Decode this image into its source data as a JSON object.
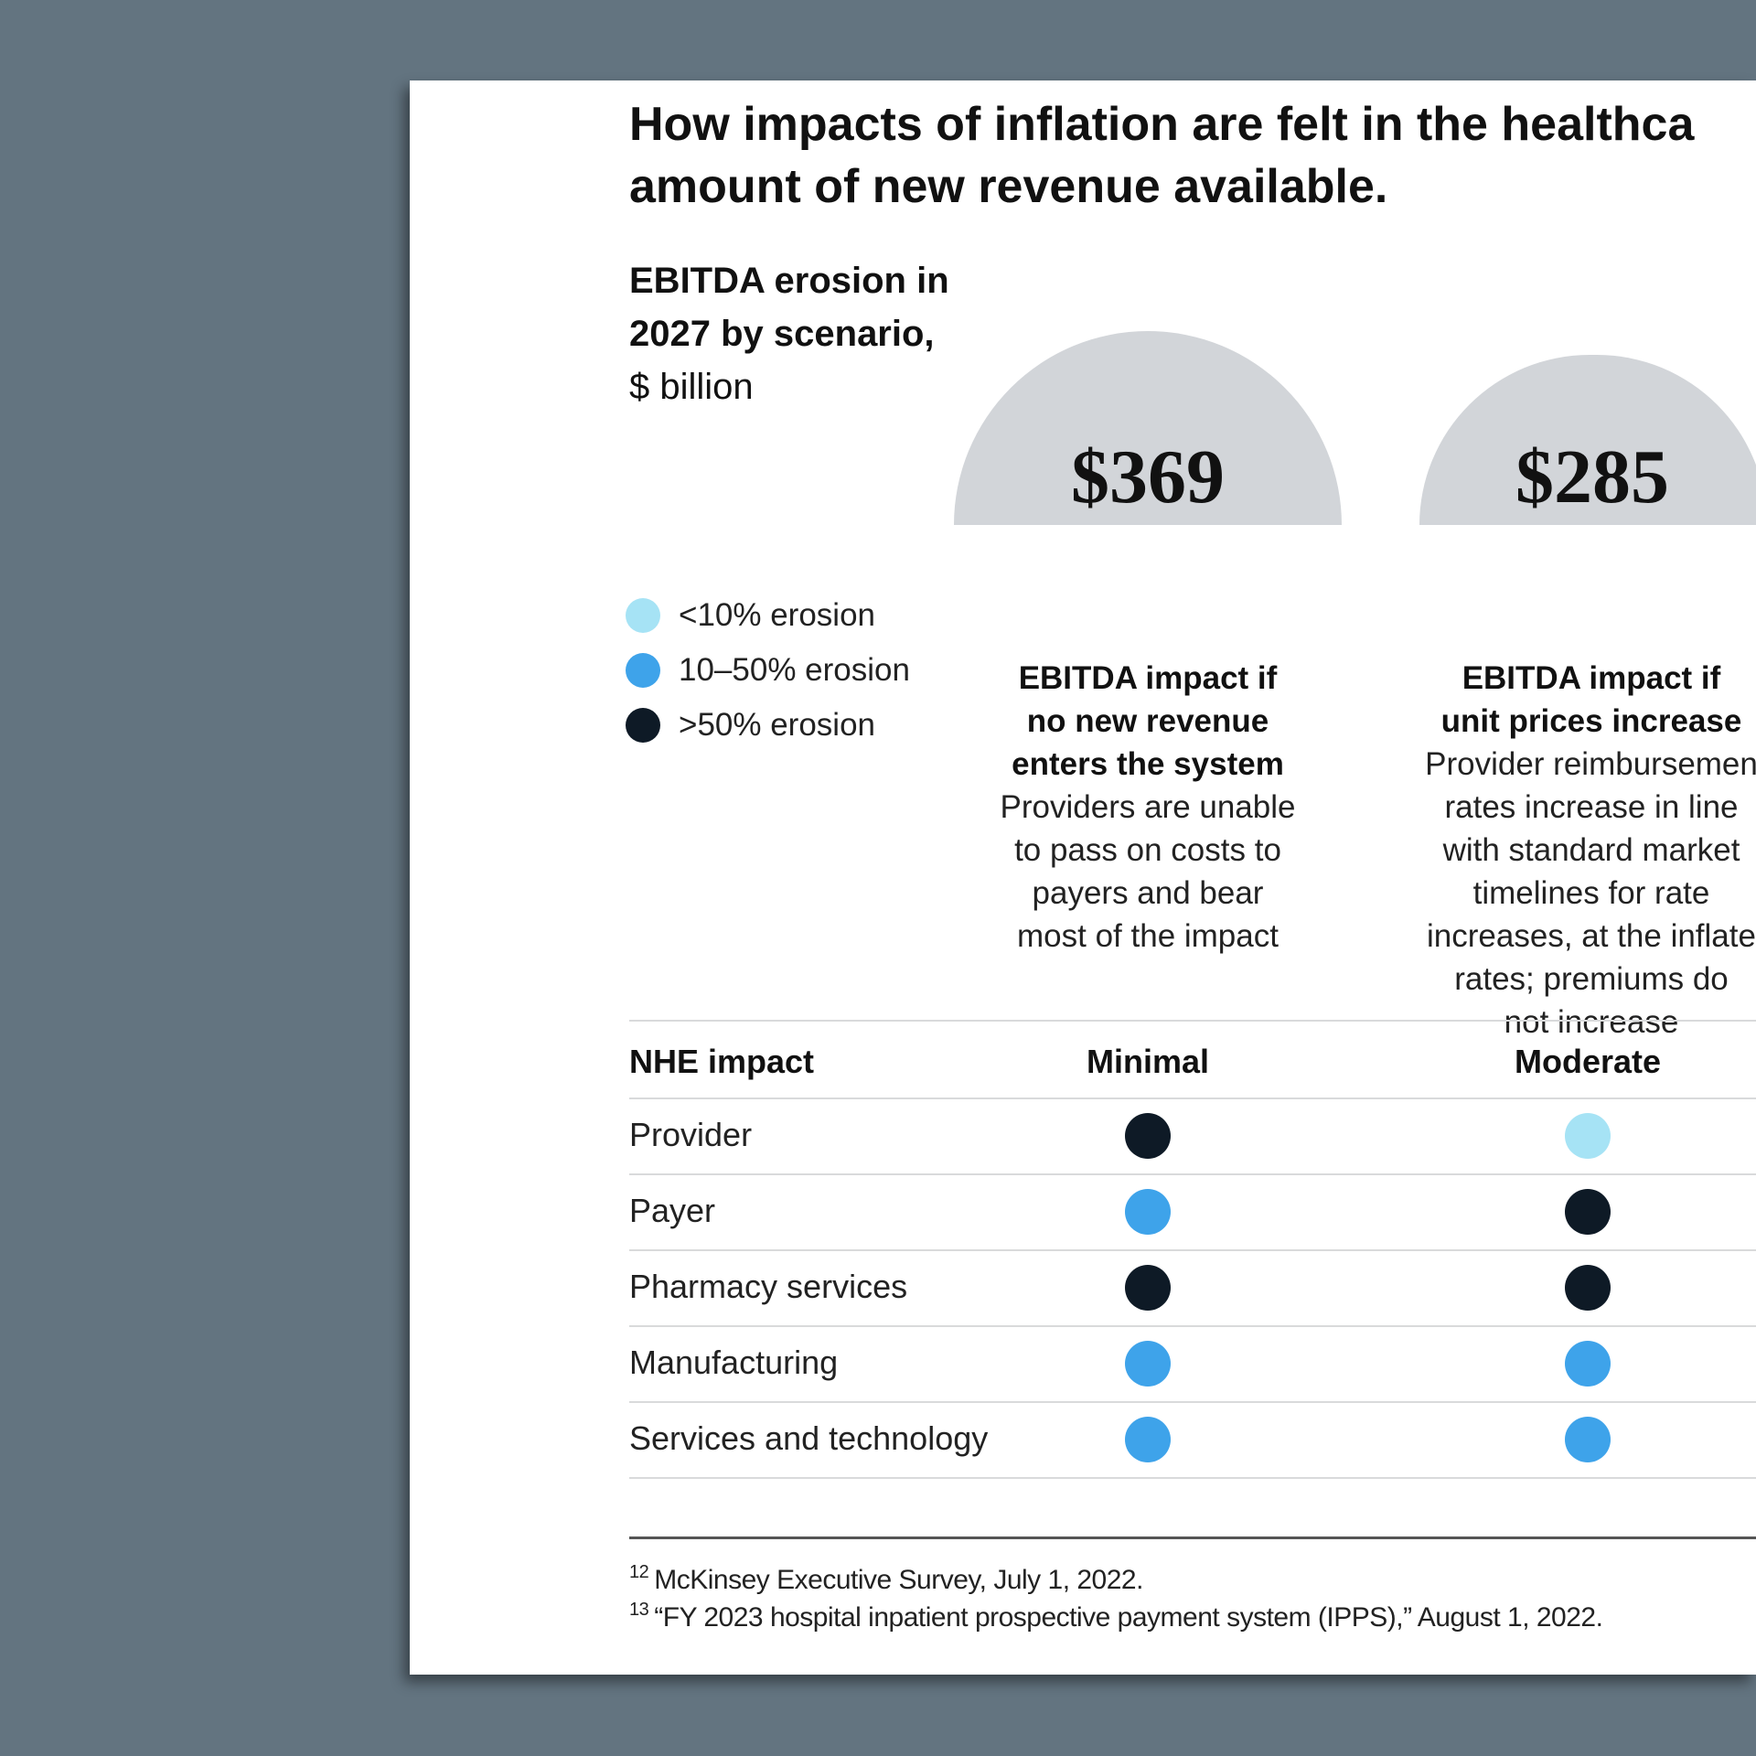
{
  "headline": {
    "line1": "How impacts of inflation are felt in the healthca",
    "line2": "amount of new revenue available."
  },
  "chart_title": {
    "bold_line1": "EBITDA erosion in",
    "bold_line2": "2027 by scenario,",
    "unit": "$ billion"
  },
  "legend": [
    {
      "label": "<10% erosion",
      "color": "#a6e3f5"
    },
    {
      "label": "10–50% erosion",
      "color": "#3ea3ea"
    },
    {
      "label": ">50% erosion",
      "color": "#0e1a26"
    }
  ],
  "scenarios": [
    {
      "value": "$369",
      "title_lines": [
        "EBITDA impact if",
        "no new revenue",
        "enters the system"
      ],
      "desc_lines": [
        "Providers are unable",
        "to pass on costs to",
        "payers and bear",
        "most of the impact"
      ]
    },
    {
      "value": "$285",
      "title_lines": [
        "EBITDA impact if",
        "unit prices increase"
      ],
      "desc_lines": [
        "Provider reimbursemen",
        "rates increase in line",
        "with standard market",
        "timelines for rate",
        "increases, at the inflate",
        "rates; premiums do",
        "not increase"
      ]
    }
  ],
  "table": {
    "header": {
      "label": "NHE impact",
      "col1": "Minimal",
      "col2": "Moderate"
    },
    "rows": [
      {
        "label": "Provider",
        "col1": ">50% erosion",
        "col2": "<10% erosion"
      },
      {
        "label": "Payer",
        "col1": "10–50% erosion",
        "col2": ">50% erosion"
      },
      {
        "label": "Pharmacy services",
        "col1": ">50% erosion",
        "col2": ">50% erosion"
      },
      {
        "label": "Manufacturing",
        "col1": "10–50% erosion",
        "col2": "10–50% erosion"
      },
      {
        "label": "Services and technology",
        "col1": "10–50% erosion",
        "col2": "10–50% erosion"
      }
    ]
  },
  "footnotes": [
    {
      "num": "12",
      "text": "McKinsey Executive Survey, July 1, 2022."
    },
    {
      "num": "13",
      "text": "“FY 2023 hospital inpatient prospective payment system (IPPS),” August 1, 2022."
    }
  ],
  "chart_data": {
    "type": "table",
    "columns": [
      "NHE impact",
      "Minimal",
      "Moderate"
    ],
    "scenario_values_billion_usd": [
      369,
      285
    ],
    "rows": [
      [
        "Provider",
        ">50% erosion",
        "<10% erosion"
      ],
      [
        "Payer",
        "10–50% erosion",
        ">50% erosion"
      ],
      [
        "Pharmacy services",
        ">50% erosion",
        ">50% erosion"
      ],
      [
        "Manufacturing",
        "10–50% erosion",
        "10–50% erosion"
      ],
      [
        "Services and technology",
        "10–50% erosion",
        "10–50% erosion"
      ]
    ]
  }
}
